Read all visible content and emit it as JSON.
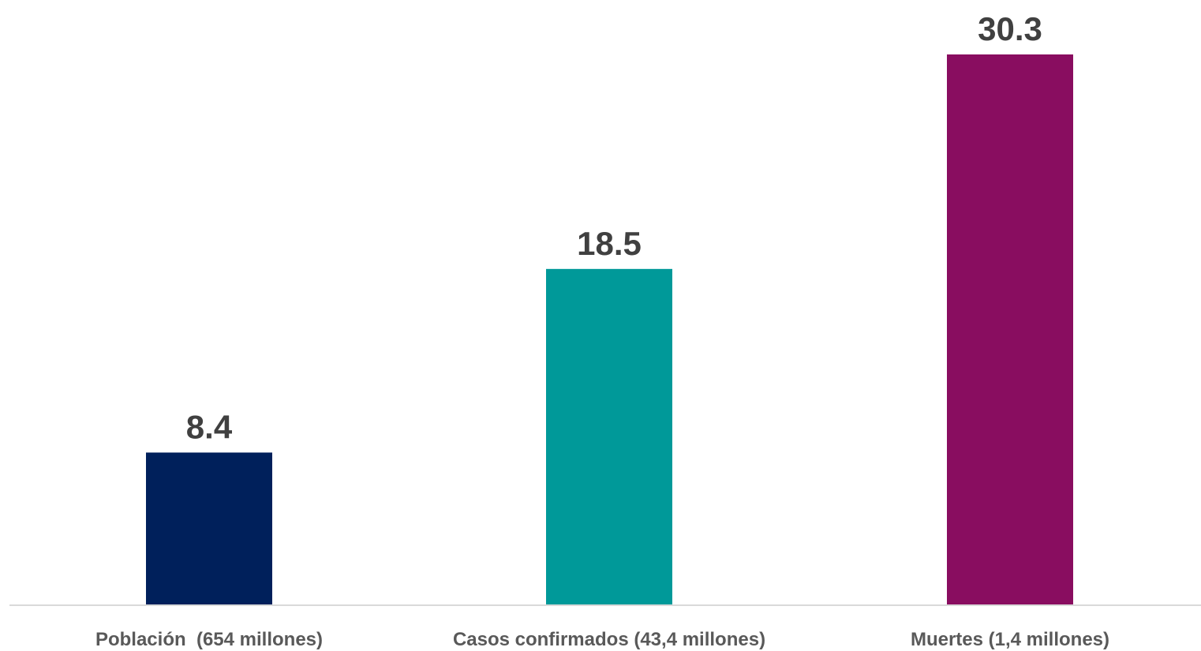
{
  "chart_data": {
    "type": "bar",
    "categories": [
      "Población  (654 millones)",
      "Casos confirmados (43,4 millones)",
      "Muertes (1,4 millones)"
    ],
    "values": [
      8.4,
      18.5,
      30.3
    ],
    "value_labels": [
      "8.4",
      "18.5",
      "30.3"
    ],
    "colors": [
      "#00205B",
      "#009999",
      "#890D60"
    ],
    "axis_color": "#D9D9D9",
    "ylim": [
      0,
      30.3
    ],
    "grid": false,
    "legend": false
  }
}
